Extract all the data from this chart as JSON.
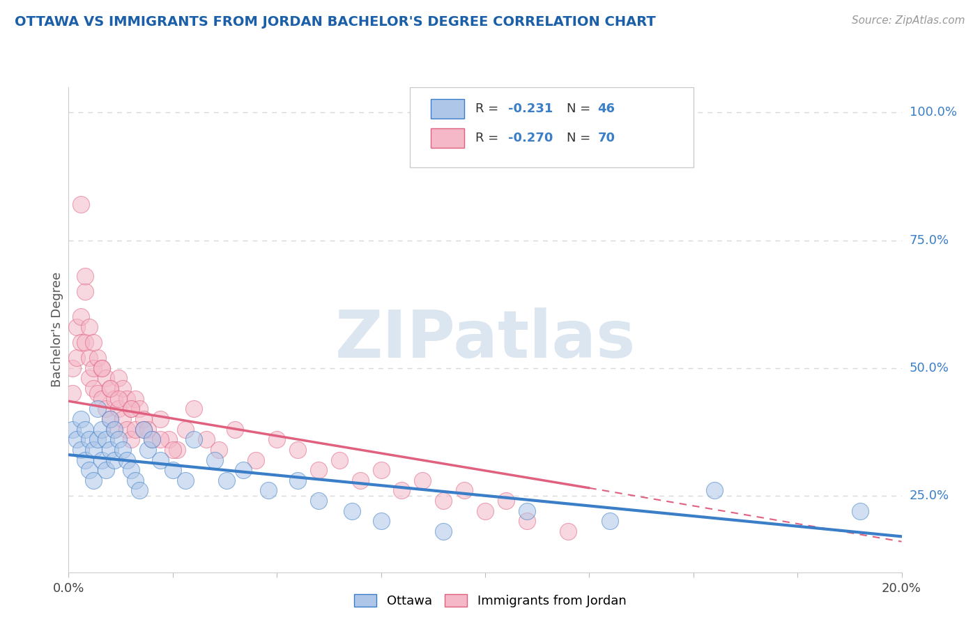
{
  "title": "OTTAWA VS IMMIGRANTS FROM JORDAN BACHELOR'S DEGREE CORRELATION CHART",
  "source": "Source: ZipAtlas.com",
  "ylabel": "Bachelor's Degree",
  "y_ticks_right": [
    0.25,
    0.5,
    0.75,
    1.0
  ],
  "y_tick_labels_right": [
    "25.0%",
    "50.0%",
    "75.0%",
    "100.0%"
  ],
  "ottawa_color": "#aec6e8",
  "jordan_color": "#f4b8c8",
  "ottawa_line_color": "#3a7ec8",
  "jordan_line_color": "#e06080",
  "watermark": "ZIPatlas",
  "watermark_color": "#dce6f0",
  "xlim": [
    0.0,
    0.2
  ],
  "ylim": [
    0.1,
    1.05
  ],
  "ottawa_scatter_x": [
    0.001,
    0.002,
    0.003,
    0.003,
    0.004,
    0.004,
    0.005,
    0.005,
    0.006,
    0.006,
    0.007,
    0.007,
    0.008,
    0.008,
    0.009,
    0.009,
    0.01,
    0.01,
    0.011,
    0.011,
    0.012,
    0.013,
    0.014,
    0.015,
    0.016,
    0.017,
    0.018,
    0.019,
    0.02,
    0.022,
    0.025,
    0.028,
    0.03,
    0.035,
    0.038,
    0.042,
    0.048,
    0.055,
    0.06,
    0.068,
    0.075,
    0.09,
    0.11,
    0.13,
    0.155,
    0.19
  ],
  "ottawa_scatter_y": [
    0.38,
    0.36,
    0.4,
    0.34,
    0.38,
    0.32,
    0.36,
    0.3,
    0.34,
    0.28,
    0.42,
    0.36,
    0.38,
    0.32,
    0.36,
    0.3,
    0.4,
    0.34,
    0.38,
    0.32,
    0.36,
    0.34,
    0.32,
    0.3,
    0.28,
    0.26,
    0.38,
    0.34,
    0.36,
    0.32,
    0.3,
    0.28,
    0.36,
    0.32,
    0.28,
    0.3,
    0.26,
    0.28,
    0.24,
    0.22,
    0.2,
    0.18,
    0.22,
    0.2,
    0.26,
    0.22
  ],
  "jordan_scatter_x": [
    0.001,
    0.001,
    0.002,
    0.002,
    0.003,
    0.003,
    0.004,
    0.004,
    0.005,
    0.005,
    0.005,
    0.006,
    0.006,
    0.007,
    0.007,
    0.008,
    0.008,
    0.009,
    0.009,
    0.01,
    0.01,
    0.011,
    0.011,
    0.012,
    0.012,
    0.013,
    0.013,
    0.014,
    0.014,
    0.015,
    0.015,
    0.016,
    0.016,
    0.017,
    0.018,
    0.019,
    0.02,
    0.022,
    0.024,
    0.026,
    0.028,
    0.03,
    0.033,
    0.036,
    0.04,
    0.045,
    0.05,
    0.055,
    0.06,
    0.065,
    0.07,
    0.075,
    0.08,
    0.085,
    0.09,
    0.095,
    0.1,
    0.105,
    0.11,
    0.12,
    0.003,
    0.004,
    0.006,
    0.008,
    0.01,
    0.012,
    0.015,
    0.018,
    0.022,
    0.025
  ],
  "jordan_scatter_y": [
    0.5,
    0.45,
    0.58,
    0.52,
    0.6,
    0.55,
    0.65,
    0.55,
    0.52,
    0.48,
    0.58,
    0.5,
    0.46,
    0.52,
    0.45,
    0.5,
    0.44,
    0.48,
    0.42,
    0.46,
    0.4,
    0.44,
    0.38,
    0.48,
    0.42,
    0.46,
    0.4,
    0.44,
    0.38,
    0.42,
    0.36,
    0.44,
    0.38,
    0.42,
    0.4,
    0.38,
    0.36,
    0.4,
    0.36,
    0.34,
    0.38,
    0.42,
    0.36,
    0.34,
    0.38,
    0.32,
    0.36,
    0.34,
    0.3,
    0.32,
    0.28,
    0.3,
    0.26,
    0.28,
    0.24,
    0.26,
    0.22,
    0.24,
    0.2,
    0.18,
    0.82,
    0.68,
    0.55,
    0.5,
    0.46,
    0.44,
    0.42,
    0.38,
    0.36,
    0.34
  ],
  "background_color": "#ffffff",
  "grid_color": "#d8d8d8",
  "legend_text_color": "#3a7ec8"
}
